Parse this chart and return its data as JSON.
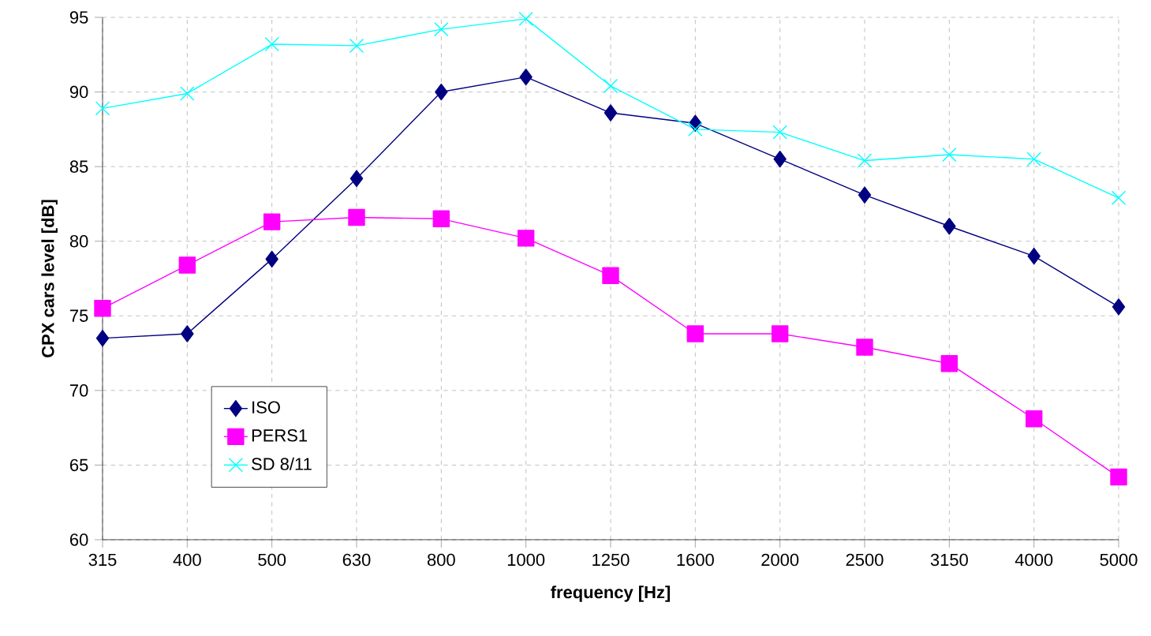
{
  "chart_data": {
    "type": "line",
    "xlabel": "frequency [Hz]",
    "ylabel": "CPX cars level [dB]",
    "categories": [
      "315",
      "400",
      "500",
      "630",
      "800",
      "1000",
      "1250",
      "1600",
      "2000",
      "2500",
      "3150",
      "4000",
      "5000"
    ],
    "series": [
      {
        "name": "ISO",
        "color": "#000080",
        "marker": "diamond",
        "values": [
          73.5,
          73.8,
          78.8,
          84.2,
          90.0,
          91.0,
          88.6,
          87.9,
          85.5,
          83.1,
          81.0,
          79.0,
          75.6
        ]
      },
      {
        "name": "PERS1",
        "color": "#ff00ff",
        "marker": "square",
        "values": [
          75.5,
          78.4,
          81.3,
          81.6,
          81.5,
          80.2,
          77.7,
          73.8,
          73.8,
          72.9,
          71.8,
          68.1,
          64.2
        ]
      },
      {
        "name": "SD 8/11",
        "color": "#00ffff",
        "marker": "cross",
        "values": [
          88.9,
          89.9,
          93.2,
          93.1,
          94.2,
          94.9,
          90.4,
          87.5,
          87.3,
          85.4,
          85.8,
          85.5,
          82.9
        ]
      }
    ],
    "ylim": [
      60,
      95
    ],
    "yticks": [
      60,
      65,
      70,
      75,
      80,
      85,
      90,
      95
    ],
    "grid": true,
    "legend": "bottom left"
  }
}
